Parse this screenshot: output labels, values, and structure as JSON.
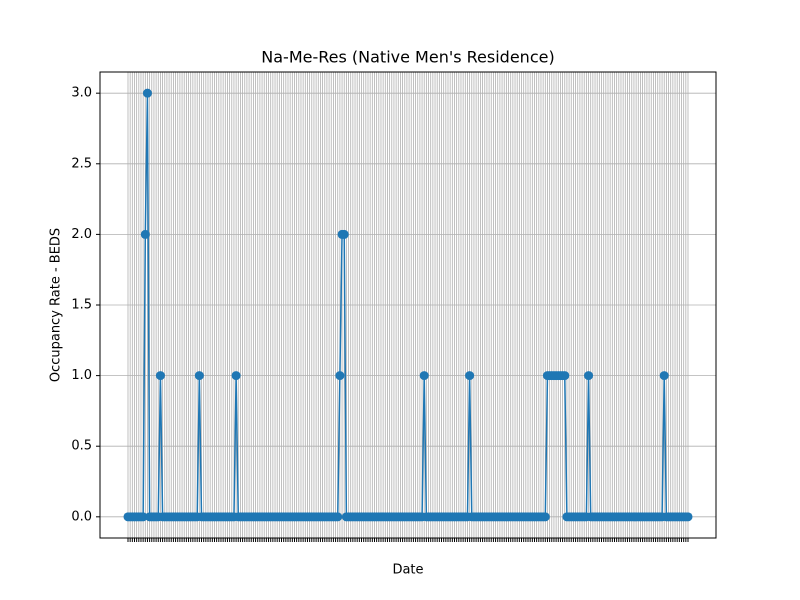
{
  "chart_data": {
    "type": "line",
    "title": "Na-Me-Res (Native Men's Residence)",
    "x_label": "Date",
    "y_label": "Occupancy Rate - BEDS",
    "categories": [
      null,
      null,
      null,
      null,
      null,
      null,
      null,
      null,
      null,
      null,
      null,
      null,
      null,
      null,
      null,
      null,
      null,
      null,
      null,
      null,
      null,
      null,
      null,
      null,
      null,
      null,
      null,
      null,
      null,
      null,
      null,
      null,
      null,
      null,
      null,
      null,
      null,
      null,
      null,
      null,
      null,
      null,
      null,
      null,
      null,
      null,
      null,
      null,
      null,
      null,
      null,
      null,
      null,
      null,
      null,
      null,
      null,
      null,
      null,
      null,
      null,
      null,
      null,
      null,
      null,
      null,
      null,
      null,
      null,
      null,
      null,
      null,
      null,
      null,
      null,
      null,
      null,
      null,
      null,
      null,
      null,
      null,
      null,
      null,
      null,
      null,
      null,
      null,
      null,
      null,
      null,
      null,
      null,
      null,
      null,
      null,
      null,
      null,
      null,
      null,
      null,
      null,
      null,
      null,
      null,
      null,
      null,
      null,
      null,
      null,
      null,
      null,
      null,
      null,
      null,
      null,
      null,
      null,
      null,
      null,
      null,
      null,
      null,
      null,
      null,
      null,
      null,
      null,
      null,
      null,
      null,
      null,
      null,
      null,
      null,
      null,
      null,
      null,
      null,
      null,
      null,
      null,
      null,
      null,
      null,
      null,
      null,
      null,
      null,
      null,
      null,
      null,
      null,
      null,
      null,
      null,
      null,
      null,
      null,
      null,
      null,
      null,
      null,
      null,
      null,
      null,
      null,
      null,
      null,
      null,
      null,
      null,
      null,
      null,
      null,
      null,
      null,
      null,
      null,
      null,
      null,
      null,
      null,
      null,
      null,
      null,
      null,
      null,
      null,
      null,
      null,
      null,
      null,
      null,
      null,
      null,
      null,
      null,
      null,
      null,
      null,
      null,
      null,
      null,
      null,
      null,
      null,
      null,
      null,
      null,
      null,
      null,
      null,
      null,
      null,
      null,
      null,
      null,
      null,
      null,
      null,
      null,
      null,
      null,
      null,
      null,
      null,
      null,
      null,
      null,
      null,
      null,
      null,
      null,
      null,
      null,
      null,
      null,
      null,
      null,
      null,
      null,
      null,
      null,
      null,
      null,
      null,
      null,
      null,
      null,
      null,
      null,
      null,
      null,
      null,
      null,
      null,
      null,
      null,
      null
    ],
    "series": [
      {
        "name": "Occupancy Rate - BEDS",
        "color": "#1f77b4",
        "values": [
          0,
          0,
          0,
          0,
          0,
          0,
          0,
          0,
          2,
          3,
          0,
          0,
          0,
          0,
          0,
          1,
          0,
          0,
          0,
          0,
          0,
          0,
          0,
          0,
          0,
          0,
          0,
          0,
          0,
          0,
          0,
          0,
          0,
          1,
          0,
          0,
          0,
          0,
          0,
          0,
          0,
          0,
          0,
          0,
          0,
          0,
          0,
          0,
          0,
          0,
          1,
          0,
          0,
          0,
          0,
          0,
          0,
          0,
          0,
          0,
          0,
          0,
          0,
          0,
          0,
          0,
          0,
          0,
          0,
          0,
          0,
          0,
          0,
          0,
          0,
          0,
          0,
          0,
          0,
          0,
          0,
          0,
          0,
          0,
          0,
          0,
          0,
          0,
          0,
          0,
          0,
          0,
          0,
          0,
          0,
          0,
          0,
          0,
          1,
          2,
          2,
          0,
          0,
          0,
          0,
          0,
          0,
          0,
          0,
          0,
          0,
          0,
          0,
          0,
          0,
          0,
          0,
          0,
          0,
          0,
          0,
          0,
          0,
          0,
          0,
          0,
          0,
          0,
          0,
          0,
          0,
          0,
          0,
          0,
          0,
          0,
          0,
          1,
          0,
          0,
          0,
          0,
          0,
          0,
          0,
          0,
          0,
          0,
          0,
          0,
          0,
          0,
          0,
          0,
          0,
          0,
          0,
          0,
          1,
          0,
          0,
          0,
          0,
          0,
          0,
          0,
          0,
          0,
          0,
          0,
          0,
          0,
          0,
          0,
          0,
          0,
          0,
          0,
          0,
          0,
          0,
          0,
          0,
          0,
          0,
          0,
          0,
          0,
          0,
          0,
          0,
          0,
          0,
          0,
          1,
          1,
          1,
          1,
          1,
          1,
          1,
          1,
          1,
          0,
          0,
          0,
          0,
          0,
          0,
          0,
          0,
          0,
          0,
          1,
          0,
          0,
          0,
          0,
          0,
          0,
          0,
          0,
          0,
          0,
          0,
          0,
          0,
          0,
          0,
          0,
          0,
          0,
          0,
          0,
          0,
          0,
          0,
          0,
          0,
          0,
          0,
          0,
          0,
          0,
          0,
          0,
          0,
          0,
          1,
          0,
          0,
          0,
          0,
          0,
          0,
          0,
          0,
          0,
          0,
          0
        ]
      }
    ],
    "ylim": [
      -0.15,
      3.15
    ],
    "yticks": [
      {
        "value": 0,
        "label": "0.0"
      },
      0.5,
      {
        "value": 1,
        "label": "1.0"
      },
      1.5,
      {
        "value": 2,
        "label": "2.0"
      },
      2.5,
      {
        "value": 3,
        "label": "3.0"
      }
    ],
    "grid": true,
    "marker": "o"
  }
}
